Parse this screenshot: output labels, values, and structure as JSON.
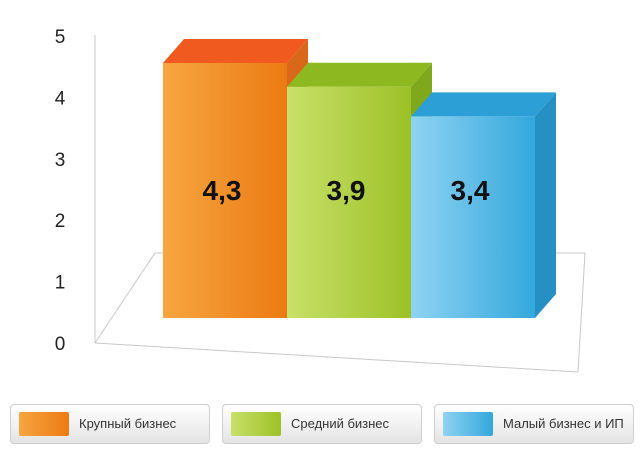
{
  "chart_data": {
    "type": "bar",
    "categories": [
      "Крупный бизнес",
      "Средний бизнес",
      "Малый бизнес и ИП"
    ],
    "values": [
      4.3,
      3.9,
      3.4
    ],
    "value_labels": [
      "4,3",
      "3,9",
      "3,4"
    ],
    "yticks": [
      "0",
      "1",
      "2",
      "3",
      "4",
      "5"
    ],
    "ylim": [
      0,
      5
    ],
    "grid": false,
    "legend": "bottom",
    "colors": [
      "#f28a1e",
      "#9fc42a",
      "#3ab0e2"
    ]
  }
}
